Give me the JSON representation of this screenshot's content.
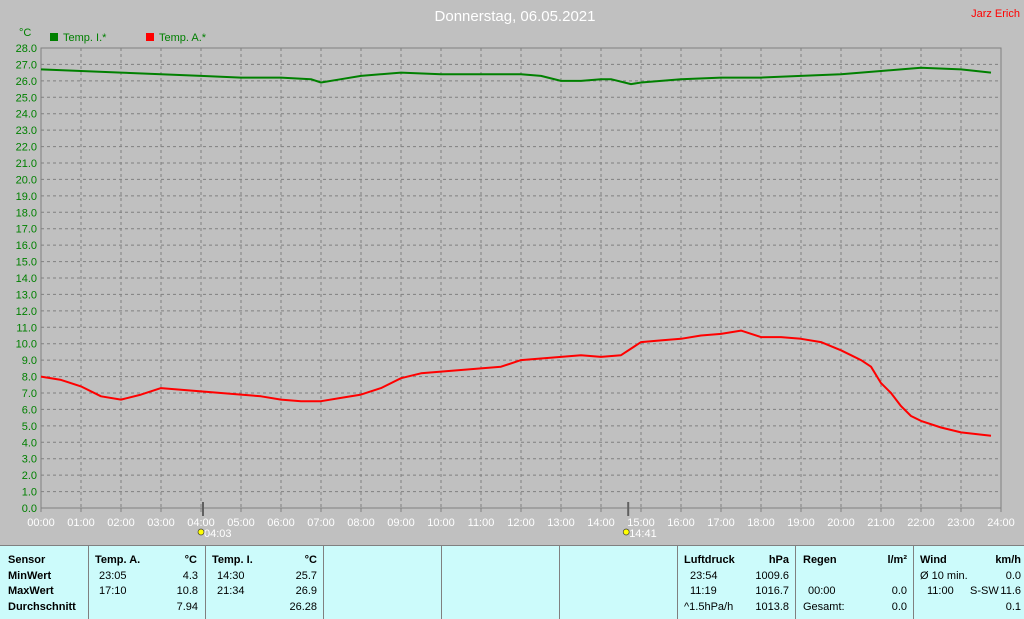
{
  "colors": {
    "inside": "#008000",
    "outside": "#ff0000",
    "axis_text": "#008000"
  },
  "chart_data": {
    "type": "line",
    "title": "Donnerstag, 06.05.2021",
    "author": "Jarz Erich",
    "ylabel": "°C",
    "xlim": [
      "00:00",
      "24:00"
    ],
    "ylim": [
      0,
      28
    ],
    "y_ticks": [
      "0.0",
      "1.0",
      "2.0",
      "3.0",
      "4.0",
      "5.0",
      "6.0",
      "7.0",
      "8.0",
      "9.0",
      "10.0",
      "11.0",
      "12.0",
      "13.0",
      "14.0",
      "15.0",
      "16.0",
      "17.0",
      "18.0",
      "19.0",
      "20.0",
      "21.0",
      "22.0",
      "23.0",
      "24.0",
      "25.0",
      "26.0",
      "27.0",
      "28.0"
    ],
    "x_ticks": [
      "00:00",
      "01:00",
      "02:00",
      "03:00",
      "04:00",
      "05:00",
      "06:00",
      "07:00",
      "08:00",
      "09:00",
      "10:00",
      "11:00",
      "12:00",
      "13:00",
      "14:00",
      "15:00",
      "16:00",
      "17:00",
      "18:00",
      "19:00",
      "20:00",
      "21:00",
      "22:00",
      "23:00",
      "24:00"
    ],
    "grid": true,
    "legend_position": "top-left",
    "markers": [
      {
        "label": "04:03",
        "hour": 4.05,
        "icon": "sunrise-icon"
      },
      {
        "label": "14:41",
        "hour": 14.68,
        "icon": "moon-icon"
      }
    ],
    "series": [
      {
        "name": "Temp. I.*",
        "color": "#008000",
        "x": [
          0,
          1,
          2,
          3,
          4,
          5,
          6,
          6.75,
          7,
          7.5,
          8,
          9,
          10,
          11,
          12,
          12.5,
          13,
          13.5,
          14,
          14.25,
          14.75,
          15,
          16,
          17,
          18,
          19,
          20,
          21,
          21.5,
          22,
          23,
          23.75
        ],
        "y": [
          26.7,
          26.6,
          26.5,
          26.4,
          26.3,
          26.2,
          26.2,
          26.1,
          25.9,
          26.1,
          26.3,
          26.5,
          26.4,
          26.4,
          26.4,
          26.3,
          26.0,
          26.0,
          26.1,
          26.1,
          25.8,
          25.9,
          26.1,
          26.2,
          26.2,
          26.3,
          26.4,
          26.6,
          26.7,
          26.8,
          26.7,
          26.5
        ]
      },
      {
        "name": "Temp. A.*",
        "color": "#ff0000",
        "x": [
          0,
          0.5,
          1,
          1.5,
          2,
          2.5,
          3,
          3.5,
          4,
          4.5,
          5,
          5.5,
          6,
          6.5,
          7,
          7.5,
          8,
          8.5,
          9,
          9.5,
          10,
          10.5,
          11,
          11.5,
          12,
          12.5,
          13,
          13.5,
          14,
          14.5,
          15,
          15.5,
          16,
          16.5,
          17,
          17.5,
          18,
          18.5,
          19,
          19.5,
          20,
          20.25,
          20.5,
          20.75,
          21,
          21.25,
          21.5,
          21.75,
          22,
          22.5,
          23,
          23.75
        ],
        "y": [
          8.0,
          7.8,
          7.4,
          6.8,
          6.6,
          6.9,
          7.3,
          7.2,
          7.1,
          7.0,
          6.9,
          6.8,
          6.6,
          6.5,
          6.5,
          6.7,
          6.9,
          7.3,
          7.9,
          8.2,
          8.3,
          8.4,
          8.5,
          8.6,
          9.0,
          9.1,
          9.2,
          9.3,
          9.2,
          9.3,
          10.1,
          10.2,
          10.3,
          10.5,
          10.6,
          10.8,
          10.4,
          10.4,
          10.3,
          10.1,
          9.6,
          9.3,
          9.0,
          8.6,
          7.6,
          7.0,
          6.2,
          5.6,
          5.3,
          4.9,
          4.6,
          4.4
        ]
      }
    ]
  },
  "stats": {
    "sensor": {
      "head": "Sensor",
      "rows": [
        "MinWert",
        "MaxWert",
        "Durchschnitt"
      ]
    },
    "temp_a": {
      "head": "Temp. A.",
      "unit": "°C",
      "rows": [
        {
          "time": "23:05",
          "val": "4.3"
        },
        {
          "time": "17:10",
          "val": "10.8"
        },
        {
          "time": "",
          "val": "7.94"
        }
      ]
    },
    "temp_i": {
      "head": "Temp. I.",
      "unit": "°C",
      "rows": [
        {
          "time": "14:30",
          "val": "25.7"
        },
        {
          "time": "21:34",
          "val": "26.9"
        },
        {
          "time": "",
          "val": "26.28"
        }
      ]
    },
    "luftdruck": {
      "head": "Luftdruck",
      "unit": "hPa",
      "rows": [
        {
          "time": "23:54",
          "val": "1009.6"
        },
        {
          "time": "11:19",
          "val": "1016.7"
        },
        {
          "time": "^1.5hPa/h",
          "val": "1013.8"
        }
      ]
    },
    "regen": {
      "head": "Regen",
      "unit": "l/m²",
      "rows": [
        {
          "time": "",
          "val": ""
        },
        {
          "time": "00:00",
          "val": "0.0"
        },
        {
          "time": "Gesamt:",
          "val": "0.0"
        }
      ]
    },
    "wind": {
      "head": "Wind",
      "unit": "km/h",
      "rows": [
        {
          "time": "Ø 10 min.",
          "dir": "",
          "val": "0.0"
        },
        {
          "time": "11:00",
          "dir": "S-SW",
          "val": "11.6"
        },
        {
          "time": "",
          "dir": "",
          "val": "0.1"
        }
      ]
    }
  }
}
